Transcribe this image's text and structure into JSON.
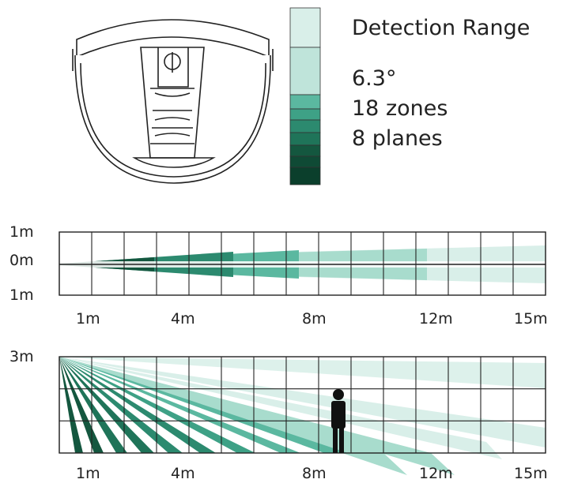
{
  "legend": {
    "title": "Detection Range",
    "angle": "6.3°",
    "zones": "18 zones",
    "planes": "8 planes"
  },
  "colors": {
    "lightest": "#d9efe9",
    "light": "#bfe4da",
    "mid_light": "#a8dccd",
    "mid": "#5bb8a0",
    "mid_dark": "#3ea186",
    "dark": "#2c8a6f",
    "darker": "#1f7459",
    "darkest": "#14573f",
    "grid": "#222222"
  },
  "side_view": {
    "y_labels": [
      "1m",
      "0m",
      "1m"
    ],
    "x_labels": [
      "1m",
      "4m",
      "8m",
      "12m",
      "15m"
    ]
  },
  "top_view": {
    "y_labels": [
      "3m"
    ],
    "x_labels": [
      "1m",
      "4m",
      "8m",
      "12m",
      "15m"
    ]
  }
}
